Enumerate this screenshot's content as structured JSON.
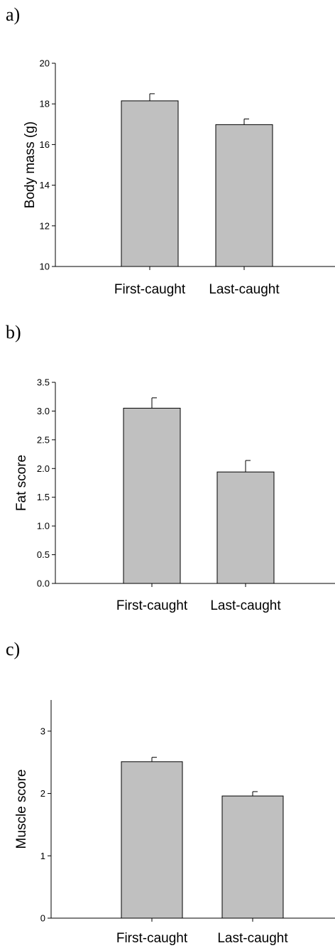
{
  "chart_data": [
    {
      "panel": "a)",
      "type": "bar",
      "categories": [
        "First-caught",
        "Last-caught"
      ],
      "values": [
        18.15,
        16.98
      ],
      "errors": [
        0.35,
        0.28
      ],
      "ylabel": "Body mass (g)",
      "xlabel": "",
      "ylim": [
        10,
        20
      ],
      "yticks": [
        10,
        12,
        14,
        16,
        18,
        20
      ],
      "ytick_labels": [
        "10",
        "12",
        "14",
        "16",
        "18",
        "20"
      ],
      "bar_color": "#c0c0c0"
    },
    {
      "panel": "b)",
      "type": "bar",
      "categories": [
        "First-caught",
        "Last-caught"
      ],
      "values": [
        3.05,
        1.94
      ],
      "errors": [
        0.18,
        0.2
      ],
      "ylabel": "Fat score",
      "xlabel": "",
      "ylim": [
        0,
        3.5
      ],
      "yticks": [
        0,
        0.5,
        1,
        1.5,
        2,
        2.5,
        3,
        3.5
      ],
      "ytick_labels": [
        "0.0",
        "0.5",
        "1.0",
        "1.5",
        "2.0",
        "2.5",
        "3.0",
        "3.5"
      ],
      "bar_color": "#c0c0c0"
    },
    {
      "panel": "c)",
      "type": "bar",
      "categories": [
        "First-caught",
        "Last-caught"
      ],
      "values": [
        2.51,
        1.96
      ],
      "errors": [
        0.07,
        0.07
      ],
      "ylabel": "Muscle score",
      "xlabel": "",
      "ylim": [
        0,
        3.5
      ],
      "yticks": [
        0,
        1,
        2,
        3
      ],
      "ytick_labels": [
        "0",
        "1",
        "2",
        "3"
      ],
      "bar_color": "#c0c0c0"
    }
  ]
}
